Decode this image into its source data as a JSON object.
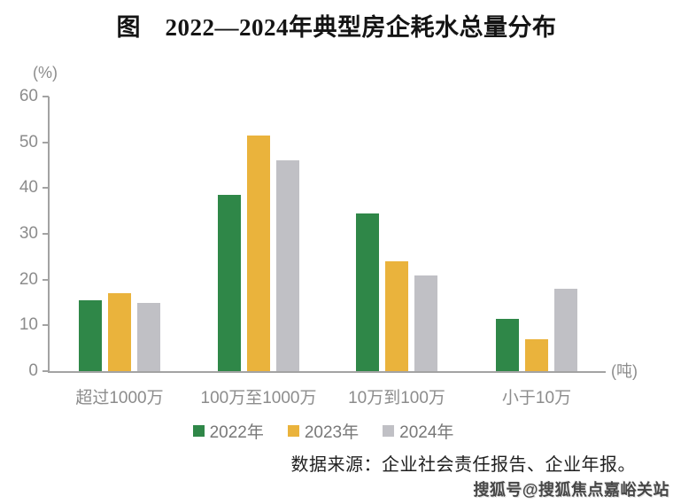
{
  "chart_data": {
    "type": "bar",
    "title": "图　2022—2024年典型房企耗水总量分布",
    "y_unit_label": "(%)",
    "x_unit_label": "(吨)",
    "ylim": [
      0,
      60
    ],
    "y_ticks": [
      0,
      10,
      20,
      30,
      40,
      50,
      60
    ],
    "grid": false,
    "legend_position": "bottom-center",
    "axis_color": "#a3a3a3",
    "label_color": "#8c8c8c",
    "categories": [
      "超过1000万",
      "100万至1000万",
      "10万到100万",
      "小于10万"
    ],
    "series": [
      {
        "key": "2022",
        "name": "2022年",
        "color": "#2f8748",
        "values": [
          15.5,
          38.5,
          34.5,
          11.5
        ]
      },
      {
        "key": "2023",
        "name": "2023年",
        "color": "#eab33c",
        "values": [
          17,
          51.5,
          24,
          7
        ]
      },
      {
        "key": "2024",
        "name": "2024年",
        "color": "#c0c0c5",
        "values": [
          15,
          46,
          21,
          18
        ]
      }
    ]
  },
  "footer": {
    "source": "数据来源：企业社会责任报告、企业年报。",
    "watermark": "搜狐号@搜狐焦点嘉峪关站"
  }
}
